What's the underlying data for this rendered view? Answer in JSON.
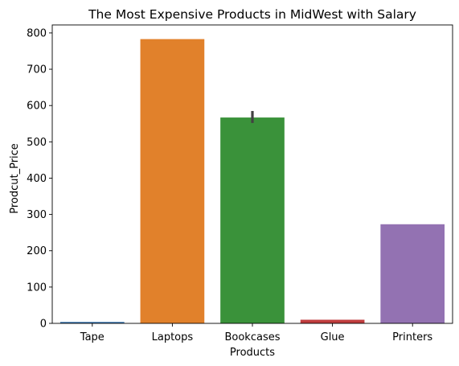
{
  "chart_data": {
    "type": "bar",
    "title": "The Most Expensive Products in MidWest with Salary",
    "xlabel": "Products",
    "ylabel": "Prodcut_Price",
    "categories": [
      "Tape",
      "Laptops",
      "Bookcases",
      "Glue",
      "Printers"
    ],
    "values": [
      4,
      783,
      567,
      10,
      273
    ],
    "error_bars": [
      null,
      null,
      [
        552,
        585
      ],
      null,
      null
    ],
    "colors": [
      "#3a75af",
      "#e1812b",
      "#3a923a",
      "#c03d3e",
      "#9372b2"
    ],
    "error_bar_color": "#424242",
    "ylim": [
      0,
      822
    ],
    "yticks": [
      0,
      100,
      200,
      300,
      400,
      500,
      600,
      700,
      800
    ],
    "grid": false,
    "legend": "none"
  }
}
